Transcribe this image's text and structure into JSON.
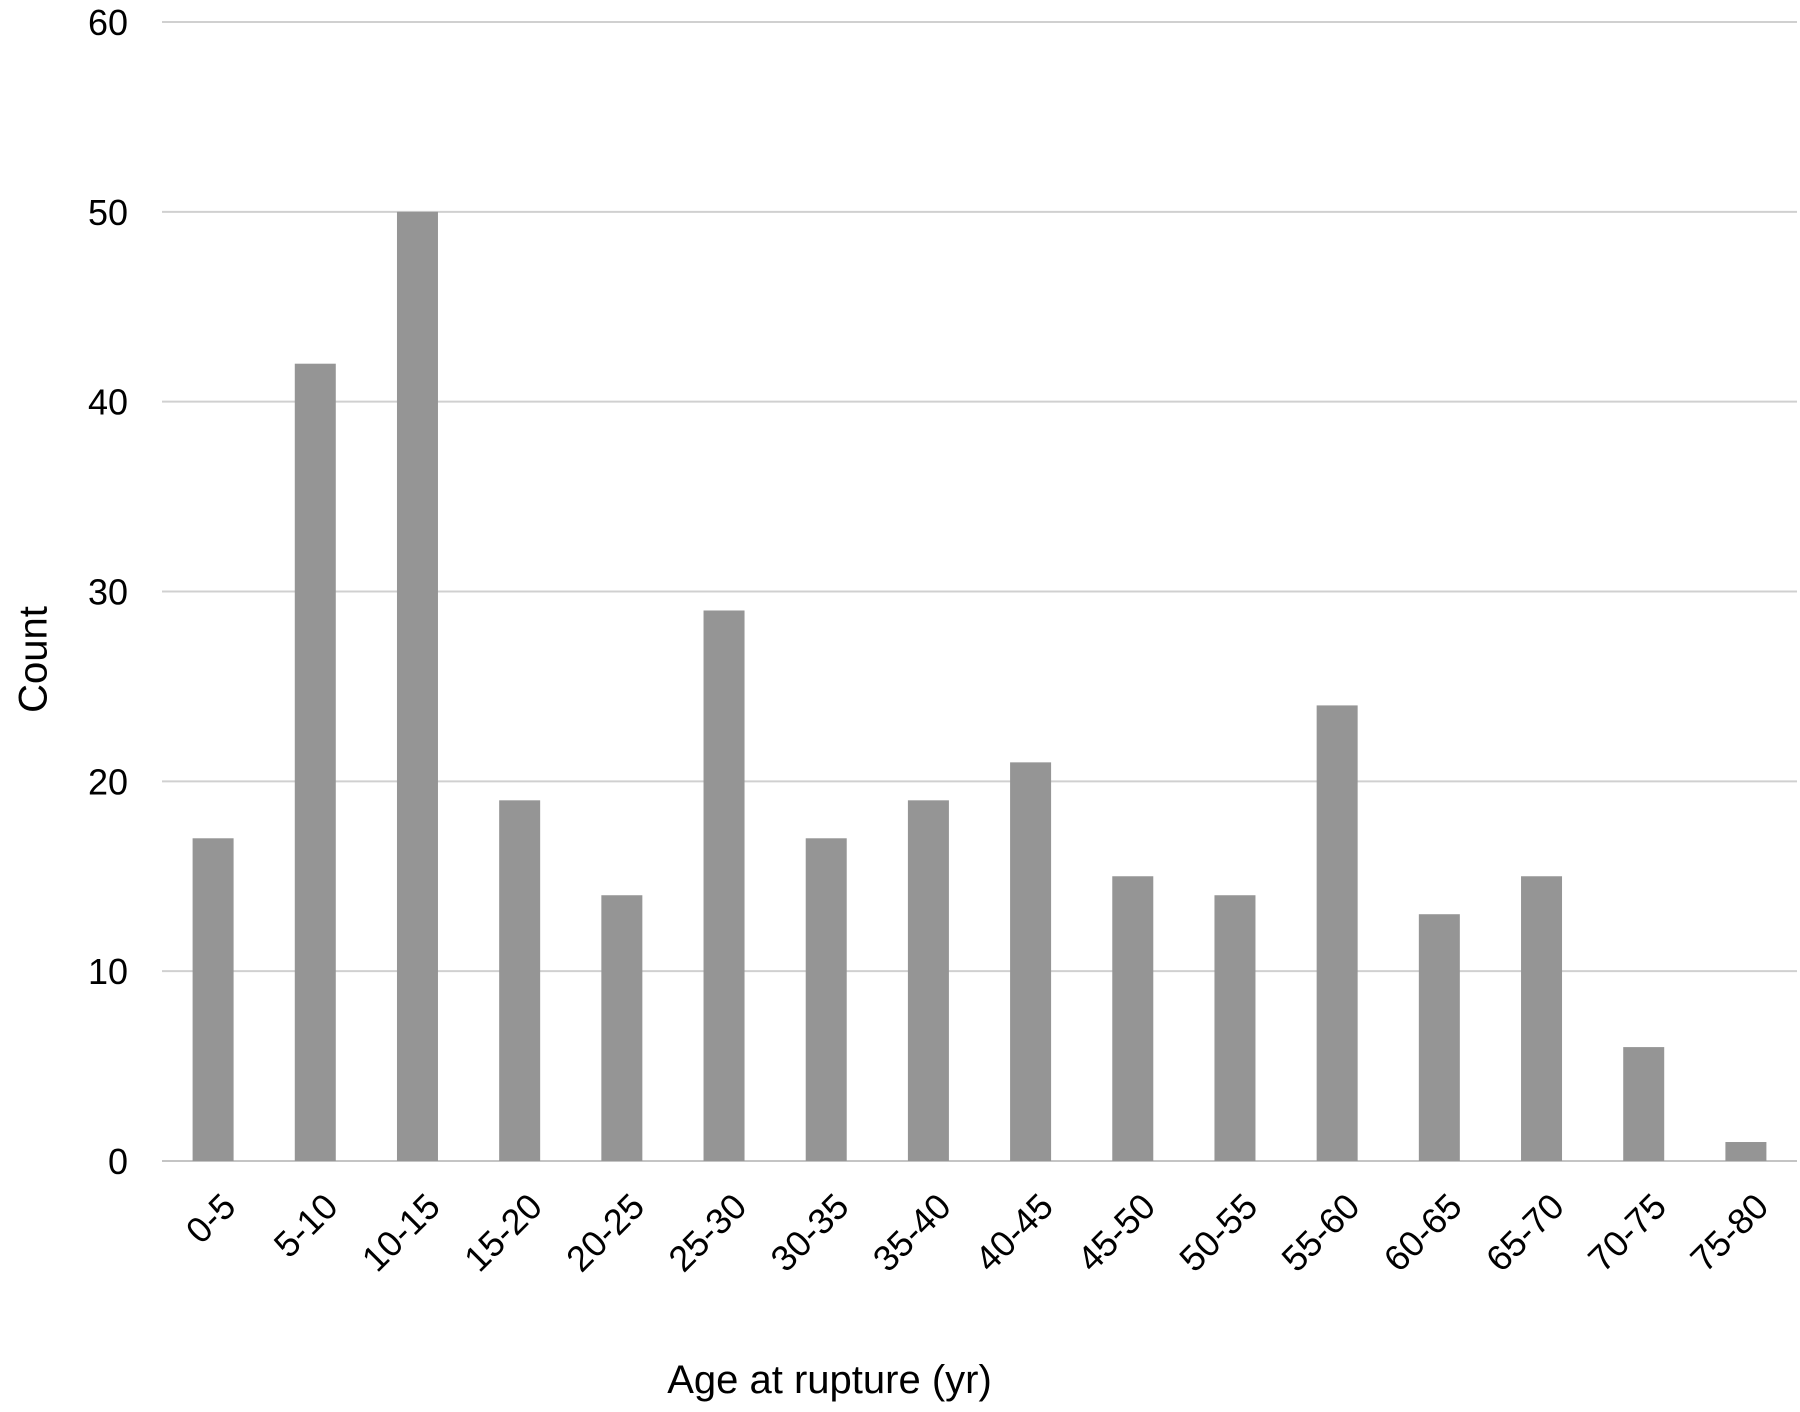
{
  "chart_data": {
    "type": "bar",
    "title": "",
    "xlabel": "Age at rupture (yr)",
    "ylabel": "Count",
    "ylim": [
      0,
      60
    ],
    "yticks": [
      0,
      10,
      20,
      30,
      40,
      50,
      60
    ],
    "grid": true,
    "legend": "none",
    "bar_color": "#959595",
    "categories": [
      "0-5",
      "5-10",
      "10-15",
      "15-20",
      "20-25",
      "25-30",
      "30-35",
      "35-40",
      "40-45",
      "45-50",
      "50-55",
      "55-60",
      "60-65",
      "65-70",
      "70-75",
      "75-80"
    ],
    "series": [
      {
        "values": [
          17,
          42,
          50,
          19,
          14,
          29,
          17,
          19,
          21,
          15,
          14,
          24,
          13,
          15,
          6,
          1
        ]
      }
    ]
  }
}
